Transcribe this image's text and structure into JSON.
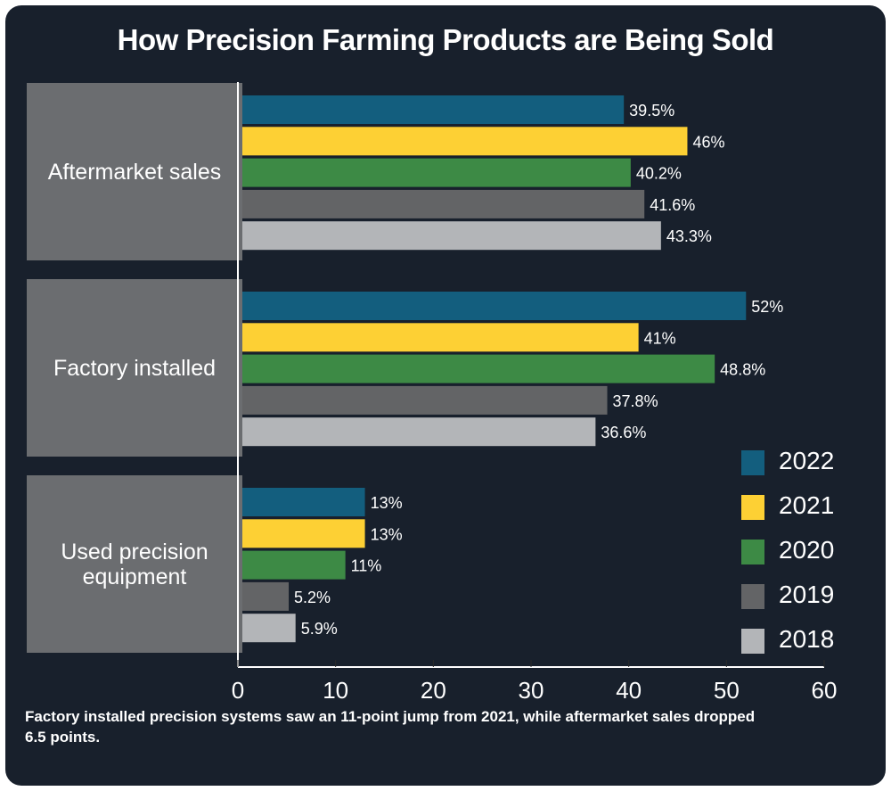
{
  "chart_data": {
    "type": "bar",
    "orientation": "horizontal",
    "title": "How Precision Farming Products are Being Sold",
    "categories": [
      "Aftermarket sales",
      "Factory installed",
      "Used precision equipment"
    ],
    "series": [
      {
        "name": "2022",
        "color": "#135e7e",
        "values": [
          39.5,
          52,
          13
        ],
        "labels": [
          "39.5%",
          "52%",
          "13%"
        ]
      },
      {
        "name": "2021",
        "color": "#fdd034",
        "values": [
          46,
          41,
          13
        ],
        "labels": [
          "46%",
          "41%",
          "13%"
        ]
      },
      {
        "name": "2020",
        "color": "#3d8a45",
        "values": [
          40.2,
          48.8,
          11
        ],
        "labels": [
          "40.2%",
          "48.8%",
          "11%"
        ]
      },
      {
        "name": "2019",
        "color": "#636466",
        "values": [
          41.6,
          37.8,
          5.2
        ],
        "labels": [
          "41.6%",
          "37.8%",
          "5.2%"
        ]
      },
      {
        "name": "2018",
        "color": "#b3b5b8",
        "values": [
          43.3,
          36.6,
          5.9
        ],
        "labels": [
          "43.3%",
          "36.6%",
          "5.9%"
        ]
      }
    ],
    "xlim": [
      0,
      60
    ],
    "xticks": [
      "0",
      "10",
      "20",
      "30",
      "40",
      "50",
      "60"
    ],
    "grid": false,
    "legend": "right",
    "caption": "Factory installed precision systems saw an 11-point jump from 2021, while aftermarket sales dropped 6.5 points."
  }
}
